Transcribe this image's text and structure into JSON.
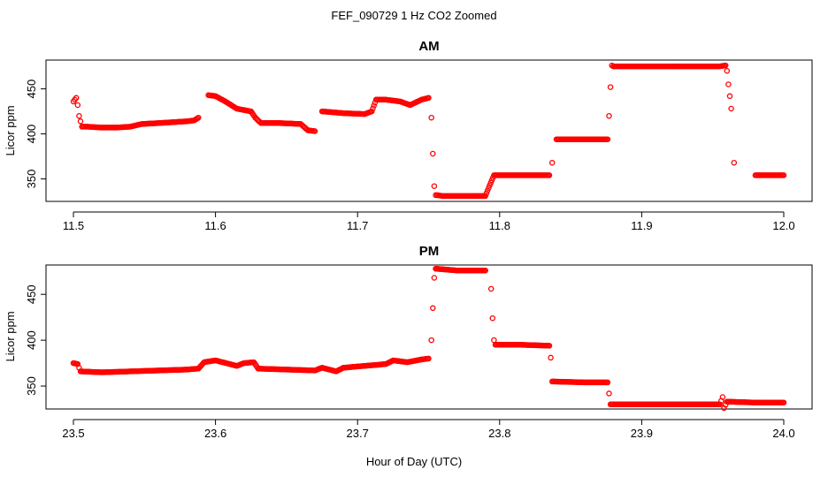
{
  "figure": {
    "title": "FEF_090729  1 Hz CO2 Zoomed",
    "xlabel": "Hour of Day (UTC)"
  },
  "colors": {
    "points": "#ff0000",
    "axis": "#000000",
    "background": "#ffffff"
  },
  "chart_data": [
    {
      "type": "scatter",
      "title": "AM",
      "ylabel": "Licor ppm",
      "xlim": [
        11.5,
        12.0
      ],
      "ylim": [
        325,
        482
      ],
      "xticks": [
        "11.5",
        "11.6",
        "11.7",
        "11.8",
        "11.9",
        "12.0"
      ],
      "yticks": [
        "350",
        "400",
        "450"
      ],
      "grid": false,
      "legend": "none",
      "x": [
        11.5,
        11.502,
        11.503,
        11.504,
        11.506,
        11.51,
        11.52,
        11.53,
        11.54,
        11.548,
        11.56,
        11.57,
        11.58,
        11.585,
        11.588,
        11.595,
        11.6,
        11.607,
        11.615,
        11.625,
        11.628,
        11.632,
        11.645,
        11.66,
        11.665,
        11.67,
        11.675,
        11.69,
        11.705,
        11.71,
        11.713,
        11.72,
        11.73,
        11.737,
        11.745,
        11.75,
        11.752,
        11.753,
        11.754,
        11.755,
        11.756,
        11.76,
        11.775,
        11.79,
        11.793,
        11.796,
        11.815,
        11.835,
        11.837,
        11.84,
        11.86,
        11.876,
        11.877,
        11.878,
        11.879,
        11.88,
        11.9,
        11.93,
        11.955,
        11.959,
        11.96,
        11.961,
        11.962,
        11.963,
        11.965,
        11.98,
        12.0
      ],
      "y": [
        436,
        440,
        432,
        420,
        408,
        408,
        407,
        407,
        408,
        411,
        412,
        413,
        414,
        415,
        418,
        443,
        442,
        436,
        428,
        425,
        418,
        412,
        412,
        411,
        404,
        403,
        425,
        423,
        422,
        425,
        438,
        438,
        436,
        432,
        438,
        440,
        418,
        378,
        342,
        332,
        332,
        331,
        331,
        331,
        343,
        354,
        354,
        354,
        368,
        394,
        394,
        394,
        420,
        452,
        476,
        475,
        475,
        475,
        475,
        476,
        470,
        455,
        442,
        428,
        368,
        354,
        354
      ]
    },
    {
      "type": "scatter",
      "title": "PM",
      "ylabel": "Licor ppm",
      "xlim": [
        23.5,
        24.0
      ],
      "ylim": [
        325,
        482
      ],
      "xticks": [
        "23.5",
        "23.6",
        "23.7",
        "23.8",
        "23.9",
        "24.0"
      ],
      "yticks": [
        "350",
        "400",
        "450"
      ],
      "grid": false,
      "legend": "none",
      "x": [
        23.5,
        23.503,
        23.505,
        23.52,
        23.54,
        23.56,
        23.58,
        23.588,
        23.592,
        23.6,
        23.61,
        23.615,
        23.62,
        23.627,
        23.63,
        23.65,
        23.67,
        23.675,
        23.68,
        23.685,
        23.69,
        23.705,
        23.72,
        23.725,
        23.735,
        23.745,
        23.75,
        23.752,
        23.753,
        23.754,
        23.755,
        23.77,
        23.79,
        23.794,
        23.795,
        23.796,
        23.797,
        23.815,
        23.835,
        23.836,
        23.837,
        23.86,
        23.876,
        23.877,
        23.878,
        23.9,
        23.93,
        23.955,
        23.957,
        23.958,
        23.96,
        23.98,
        24.0
      ],
      "y": [
        375,
        374,
        366,
        365,
        366,
        367,
        368,
        369,
        376,
        378,
        374,
        372,
        375,
        376,
        369,
        368,
        367,
        370,
        368,
        366,
        370,
        372,
        374,
        378,
        376,
        379,
        380,
        400,
        435,
        468,
        478,
        476,
        476,
        456,
        424,
        400,
        395,
        395,
        394,
        381,
        355,
        354,
        354,
        342,
        330,
        330,
        330,
        330,
        338,
        326,
        333,
        332,
        332
      ]
    }
  ]
}
